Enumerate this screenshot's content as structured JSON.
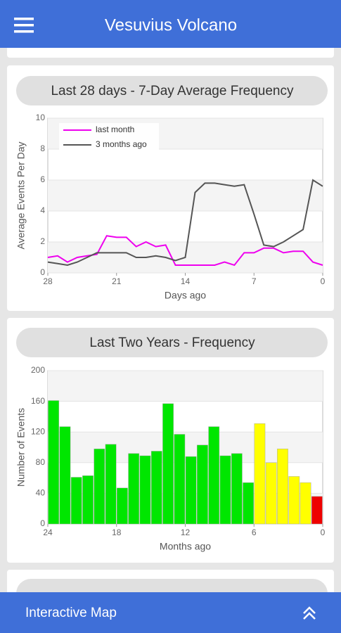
{
  "header": {
    "title": "Vesuvius Volcano"
  },
  "chart_data": [
    {
      "type": "line",
      "title": "Last 28 days - 7-Day Average Frequency",
      "xlabel": "Days ago",
      "ylabel": "Average Events Per Day",
      "x": [
        28,
        27,
        26,
        25,
        24,
        23,
        22,
        21,
        20,
        19,
        18,
        17,
        16,
        15,
        14,
        13,
        12,
        11,
        10,
        9,
        8,
        7,
        6,
        5,
        4,
        3,
        2,
        1,
        0
      ],
      "series": [
        {
          "name": "last month",
          "color": "#ee00ee",
          "values": [
            1.0,
            1.1,
            0.7,
            1.0,
            1.1,
            1.2,
            2.4,
            2.3,
            2.3,
            1.7,
            2.0,
            1.7,
            1.8,
            0.5,
            0.5,
            0.5,
            0.5,
            0.5,
            0.7,
            0.5,
            1.3,
            1.3,
            1.6,
            1.6,
            1.3,
            1.4,
            1.4,
            0.7,
            0.5
          ]
        },
        {
          "name": "3 months ago",
          "color": "#555555",
          "values": [
            0.7,
            0.6,
            0.5,
            0.7,
            1.0,
            1.3,
            1.3,
            1.3,
            1.3,
            1.0,
            1.0,
            1.1,
            1.0,
            0.8,
            1.0,
            5.2,
            5.8,
            5.8,
            5.7,
            5.6,
            5.7,
            3.8,
            1.8,
            1.7,
            2.0,
            2.4,
            2.8,
            6.0,
            5.6
          ]
        }
      ],
      "xlim": [
        28,
        0
      ],
      "xticks": [
        28,
        21,
        14,
        7,
        0
      ],
      "ylim": [
        0,
        10
      ],
      "yticks": [
        0,
        2,
        4,
        6,
        8,
        10
      ],
      "grid": true,
      "legend": "upper left"
    },
    {
      "type": "histogram",
      "title": "Last Two Years - Frequency",
      "xlabel": "Months ago",
      "ylabel": "Number of Events",
      "bins": [
        24,
        23,
        22,
        21,
        20,
        19,
        18,
        17,
        16,
        15,
        14,
        13,
        12,
        11,
        10,
        9,
        8,
        7,
        6,
        5,
        4,
        3,
        2,
        1,
        0
      ],
      "values": [
        161,
        127,
        61,
        63,
        98,
        104,
        47,
        92,
        89,
        95,
        157,
        117,
        88,
        103,
        127,
        89,
        92,
        54,
        131,
        80,
        98,
        62,
        54,
        36
      ],
      "colors": [
        "#00e600",
        "#00e600",
        "#00e600",
        "#00e600",
        "#00e600",
        "#00e600",
        "#00e600",
        "#00e600",
        "#00e600",
        "#00e600",
        "#00e600",
        "#00e600",
        "#00e600",
        "#00e600",
        "#00e600",
        "#00e600",
        "#00e600",
        "#00e600",
        "#ffff00",
        "#ffff00",
        "#ffff00",
        "#ffff00",
        "#ffff00",
        "#ee0000"
      ],
      "xlim": [
        24,
        0
      ],
      "xticks": [
        24,
        18,
        12,
        6,
        0
      ],
      "ylim": [
        0,
        200
      ],
      "yticks": [
        0,
        40,
        80,
        120,
        160,
        200
      ],
      "grid": true
    }
  ],
  "footer": {
    "label": "Interactive Map"
  }
}
